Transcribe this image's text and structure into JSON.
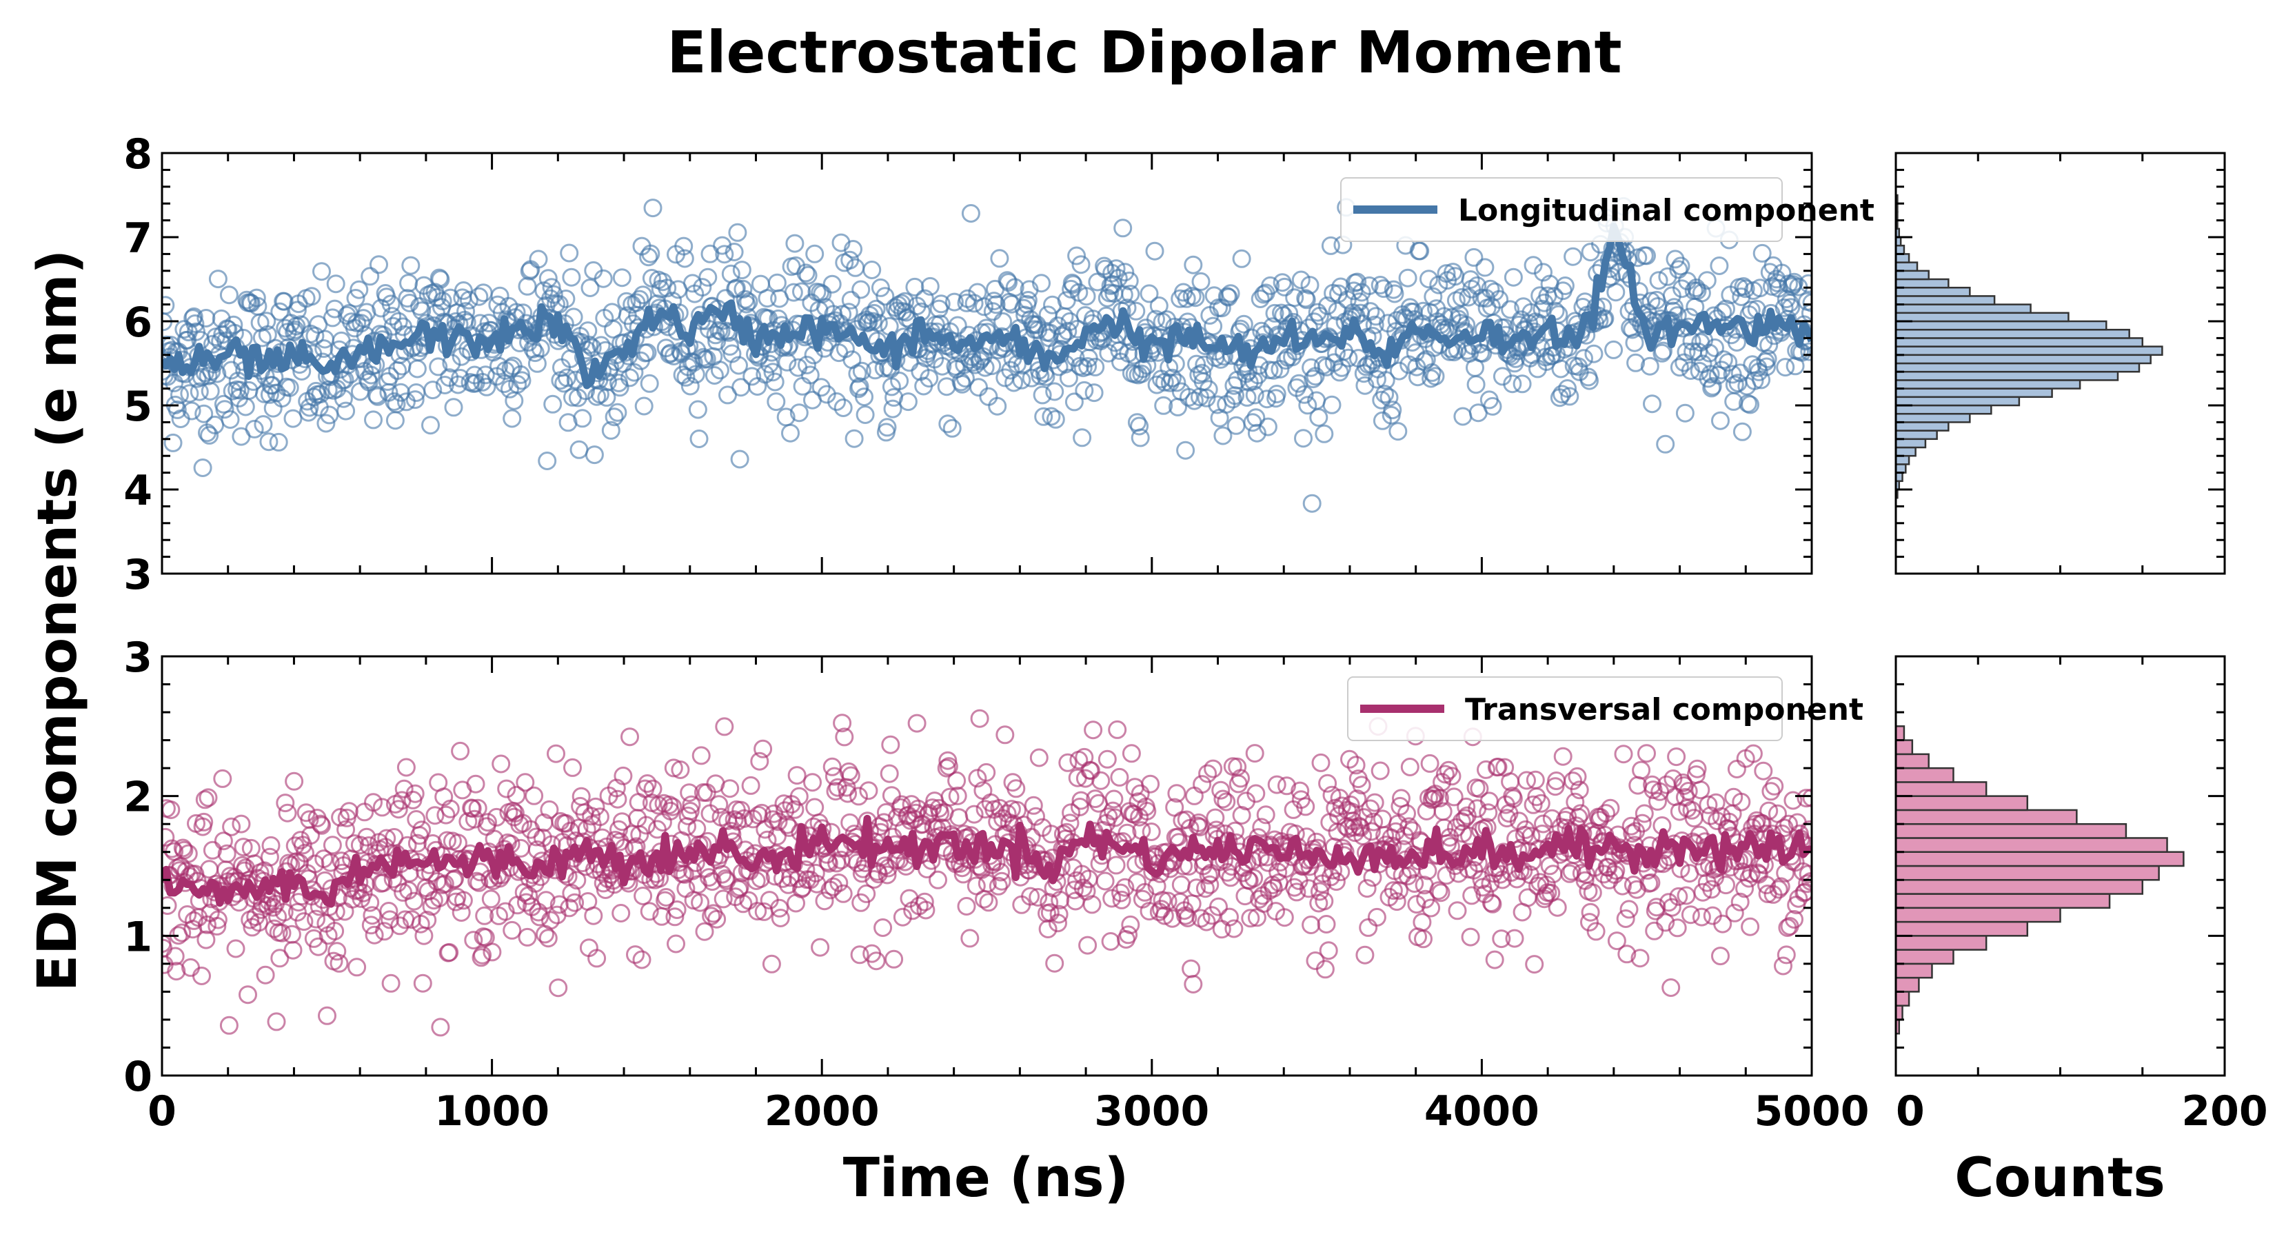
{
  "chart_data": {
    "title": "Electrostatic Dipolar Moment",
    "ylabel": "EDM components (e nm)",
    "xlabel": "Time (ns)",
    "hist_xlabel": "Counts",
    "colors": {
      "longitudinal": "#4577a8",
      "transversal": "#a8306e",
      "long_fill": "#a9c1dc",
      "trans_fill": "#e196b8"
    },
    "panels": [
      {
        "id": "longitudinal",
        "type": "scatter+line",
        "legend": "Longitudinal component",
        "xlim": [
          0,
          5000
        ],
        "ylim": [
          3,
          8
        ],
        "yticks": [
          "3",
          "4",
          "5",
          "6",
          "7",
          "8"
        ],
        "mean": 5.75,
        "sd": 0.55,
        "n_points": 1500,
        "smoothed": {
          "x": [
            0,
            100,
            200,
            300,
            400,
            500,
            600,
            700,
            800,
            900,
            1000,
            1100,
            1200,
            1300,
            1400,
            1500,
            1600,
            1700,
            1800,
            1900,
            2000,
            2100,
            2200,
            2300,
            2400,
            2500,
            2600,
            2700,
            2800,
            2900,
            3000,
            3100,
            3200,
            3300,
            3400,
            3500,
            3600,
            3700,
            3800,
            3900,
            4000,
            4100,
            4200,
            4300,
            4400,
            4500,
            4600,
            4700,
            4800,
            4900,
            5000
          ],
          "y": [
            5.55,
            5.45,
            5.6,
            5.5,
            5.55,
            5.4,
            5.6,
            5.7,
            5.85,
            5.75,
            5.8,
            5.9,
            6.0,
            5.3,
            5.7,
            6.1,
            5.9,
            6.1,
            5.8,
            5.9,
            5.9,
            5.8,
            5.6,
            5.9,
            5.7,
            5.8,
            5.7,
            5.5,
            5.9,
            6.0,
            5.7,
            5.8,
            5.7,
            5.6,
            5.8,
            5.7,
            5.9,
            5.6,
            5.9,
            5.8,
            5.9,
            5.7,
            6.0,
            5.7,
            7.0,
            5.9,
            5.9,
            6.0,
            5.9,
            6.0,
            5.9
          ]
        }
      },
      {
        "id": "transversal",
        "type": "scatter+line",
        "legend": "Transversal component",
        "xlim": [
          0,
          5000
        ],
        "ylim": [
          0,
          3
        ],
        "xticks": [
          "0",
          "1000",
          "2000",
          "3000",
          "4000",
          "5000"
        ],
        "yticks": [
          "0",
          "1",
          "2",
          "3"
        ],
        "mean": 1.55,
        "sd": 0.37,
        "n_points": 1500,
        "smoothed": {
          "x": [
            0,
            100,
            200,
            300,
            400,
            500,
            600,
            700,
            800,
            900,
            1000,
            1100,
            1200,
            1300,
            1400,
            1500,
            1600,
            1700,
            1800,
            1900,
            2000,
            2100,
            2200,
            2300,
            2400,
            2500,
            2600,
            2700,
            2800,
            2900,
            3000,
            3100,
            3200,
            3300,
            3400,
            3500,
            3600,
            3700,
            3800,
            3900,
            4000,
            4100,
            4200,
            4300,
            4400,
            4500,
            4600,
            4700,
            4800,
            4900,
            5000
          ],
          "y": [
            1.4,
            1.3,
            1.3,
            1.35,
            1.4,
            1.25,
            1.5,
            1.55,
            1.55,
            1.5,
            1.55,
            1.5,
            1.55,
            1.6,
            1.55,
            1.6,
            1.55,
            1.65,
            1.5,
            1.6,
            1.7,
            1.65,
            1.65,
            1.6,
            1.7,
            1.6,
            1.65,
            1.5,
            1.7,
            1.65,
            1.55,
            1.6,
            1.6,
            1.65,
            1.6,
            1.55,
            1.6,
            1.6,
            1.55,
            1.6,
            1.6,
            1.55,
            1.65,
            1.6,
            1.65,
            1.6,
            1.7,
            1.6,
            1.65,
            1.6,
            1.65
          ]
        }
      }
    ],
    "histograms": [
      {
        "id": "longitudinal_hist",
        "type": "bar",
        "orientation": "horizontal",
        "xlim": [
          0,
          200
        ],
        "bin_edges": [
          3.9,
          4.0,
          4.1,
          4.2,
          4.3,
          4.4,
          4.5,
          4.6,
          4.7,
          4.8,
          4.9,
          5.0,
          5.1,
          5.2,
          5.3,
          5.4,
          5.5,
          5.6,
          5.7,
          5.8,
          5.9,
          6.0,
          6.1,
          6.2,
          6.3,
          6.4,
          6.5,
          6.6,
          6.7,
          6.8,
          6.9,
          7.0,
          7.1,
          7.2,
          7.3,
          7.4,
          7.5
        ],
        "counts": [
          1,
          2,
          4,
          6,
          8,
          12,
          18,
          25,
          32,
          45,
          58,
          75,
          95,
          112,
          135,
          148,
          155,
          162,
          150,
          142,
          128,
          105,
          82,
          60,
          45,
          32,
          20,
          13,
          8,
          5,
          3,
          2,
          1,
          1,
          1,
          1
        ]
      },
      {
        "id": "transversal_hist",
        "type": "bar",
        "orientation": "horizontal",
        "xticks": [
          "0",
          "200"
        ],
        "xlim": [
          0,
          200
        ],
        "bin_edges": [
          0.3,
          0.4,
          0.5,
          0.6,
          0.7,
          0.8,
          0.9,
          1.0,
          1.1,
          1.2,
          1.3,
          1.4,
          1.5,
          1.6,
          1.7,
          1.8,
          1.9,
          2.0,
          2.1,
          2.2,
          2.3,
          2.4,
          2.5
        ],
        "counts": [
          2,
          4,
          8,
          14,
          22,
          35,
          55,
          80,
          100,
          130,
          150,
          160,
          175,
          165,
          140,
          110,
          80,
          55,
          35,
          20,
          10,
          5
        ]
      }
    ]
  }
}
